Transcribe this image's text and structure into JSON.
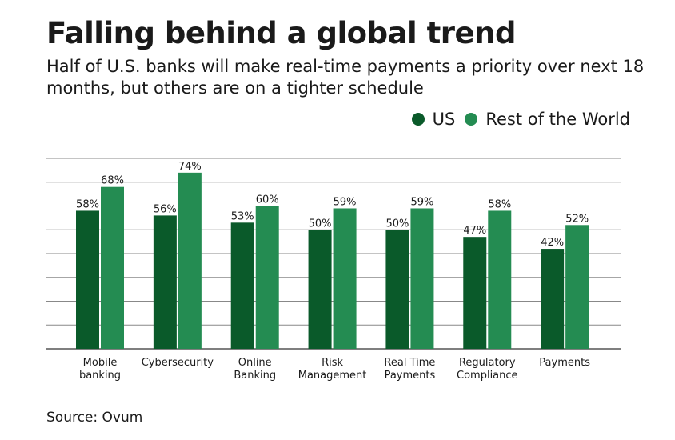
{
  "colors": {
    "us": "#0a5a2a",
    "row": "#248c52",
    "grid": "#888888"
  },
  "chart_data": {
    "type": "bar",
    "title": "Falling behind a global trend",
    "subtitle": "Half of U.S. banks will make real-time payments a priority over next 18 months, but others are on a tighter schedule",
    "categories": [
      [
        "Mobile",
        "banking"
      ],
      [
        "Cybersecurity"
      ],
      [
        "Online",
        "Banking"
      ],
      [
        "Risk",
        "Management"
      ],
      [
        "Real Time",
        "Payments"
      ],
      [
        "Regulatory",
        "Compliance"
      ],
      [
        "Payments"
      ]
    ],
    "series": [
      {
        "name": "US",
        "values": [
          58,
          56,
          53,
          50,
          50,
          47,
          42
        ],
        "labels": [
          "58%",
          "56%",
          "53%",
          "50%",
          "50%",
          "47%",
          "42%"
        ]
      },
      {
        "name": "Rest of the World",
        "values": [
          68,
          74,
          60,
          59,
          59,
          58,
          52
        ],
        "labels": [
          "68%",
          "74%",
          "60%",
          "59%",
          "59%",
          "58%",
          "52%"
        ]
      }
    ],
    "ylim": [
      0,
      80
    ],
    "grid_step": 10,
    "grid": true,
    "legend_position": "top-right"
  },
  "source": "Source: Ovum"
}
